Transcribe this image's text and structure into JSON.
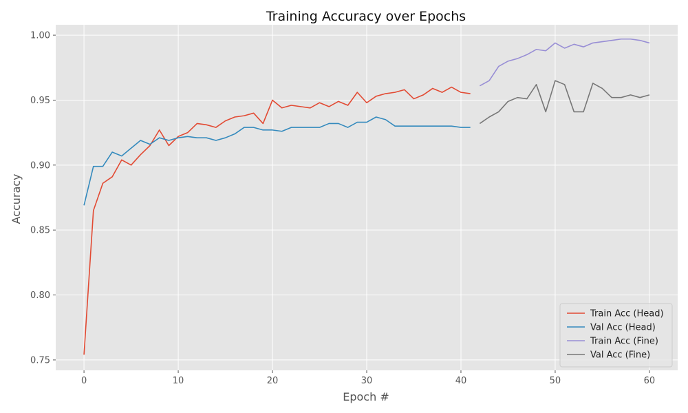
{
  "chart_data": {
    "type": "line",
    "title": "Training Accuracy over Epochs",
    "xlabel": "Epoch #",
    "ylabel": "Accuracy",
    "xlim": [
      -3,
      63
    ],
    "ylim": [
      0.742,
      1.008
    ],
    "xticks": [
      0,
      10,
      20,
      30,
      40,
      50,
      60
    ],
    "yticks": [
      0.75,
      0.8,
      0.85,
      0.9,
      0.95,
      1.0
    ],
    "xtick_labels": [
      "0",
      "10",
      "20",
      "30",
      "40",
      "50",
      "60"
    ],
    "ytick_labels": [
      "0.75",
      "0.80",
      "0.85",
      "0.90",
      "0.95",
      "1.00"
    ],
    "grid": true,
    "legend_position": "bottom-right",
    "style": {
      "plot_background": "#e5e5e5",
      "grid_color": "#ffffff"
    },
    "series": [
      {
        "name": "Train Acc (Head)",
        "color": "#e24a33",
        "x": [
          0,
          1,
          2,
          3,
          4,
          5,
          6,
          7,
          8,
          9,
          10,
          11,
          12,
          13,
          14,
          15,
          16,
          17,
          18,
          19,
          20,
          21,
          22,
          23,
          24,
          25,
          26,
          27,
          28,
          29,
          30,
          31,
          32,
          33,
          34,
          35,
          36,
          37,
          38,
          39,
          40,
          41
        ],
        "y": [
          0.754,
          0.865,
          0.886,
          0.891,
          0.904,
          0.9,
          0.908,
          0.915,
          0.927,
          0.915,
          0.922,
          0.925,
          0.932,
          0.931,
          0.929,
          0.934,
          0.937,
          0.938,
          0.94,
          0.932,
          0.95,
          0.944,
          0.946,
          0.945,
          0.944,
          0.948,
          0.945,
          0.949,
          0.946,
          0.956,
          0.948,
          0.953,
          0.955,
          0.956,
          0.958,
          0.951,
          0.954,
          0.959,
          0.956,
          0.96,
          0.956,
          0.955
        ]
      },
      {
        "name": "Val Acc (Head)",
        "color": "#348abd",
        "x": [
          0,
          1,
          2,
          3,
          4,
          5,
          6,
          7,
          8,
          9,
          10,
          11,
          12,
          13,
          14,
          15,
          16,
          17,
          18,
          19,
          20,
          21,
          22,
          23,
          24,
          25,
          26,
          27,
          28,
          29,
          30,
          31,
          32,
          33,
          34,
          35,
          36,
          37,
          38,
          39,
          40,
          41
        ],
        "y": [
          0.869,
          0.899,
          0.899,
          0.91,
          0.907,
          0.913,
          0.919,
          0.916,
          0.921,
          0.919,
          0.921,
          0.922,
          0.921,
          0.921,
          0.919,
          0.921,
          0.924,
          0.929,
          0.929,
          0.927,
          0.927,
          0.926,
          0.929,
          0.929,
          0.929,
          0.929,
          0.932,
          0.932,
          0.929,
          0.933,
          0.933,
          0.937,
          0.935,
          0.93,
          0.93,
          0.93,
          0.93,
          0.93,
          0.93,
          0.93,
          0.929,
          0.929
        ]
      },
      {
        "name": "Train Acc (Fine)",
        "color": "#988ed5",
        "x": [
          42,
          43,
          44,
          45,
          46,
          47,
          48,
          49,
          50,
          51,
          52,
          53,
          54,
          55,
          56,
          57,
          58,
          59,
          60
        ],
        "y": [
          0.961,
          0.965,
          0.976,
          0.98,
          0.982,
          0.985,
          0.989,
          0.988,
          0.994,
          0.99,
          0.993,
          0.991,
          0.994,
          0.995,
          0.996,
          0.997,
          0.997,
          0.996,
          0.994
        ]
      },
      {
        "name": "Val Acc (Fine)",
        "color": "#777777",
        "x": [
          42,
          43,
          44,
          45,
          46,
          47,
          48,
          49,
          50,
          51,
          52,
          53,
          54,
          55,
          56,
          57,
          58,
          59,
          60
        ],
        "y": [
          0.932,
          0.937,
          0.941,
          0.949,
          0.952,
          0.951,
          0.962,
          0.941,
          0.965,
          0.962,
          0.941,
          0.941,
          0.963,
          0.959,
          0.952,
          0.952,
          0.954,
          0.952,
          0.954
        ]
      }
    ]
  }
}
